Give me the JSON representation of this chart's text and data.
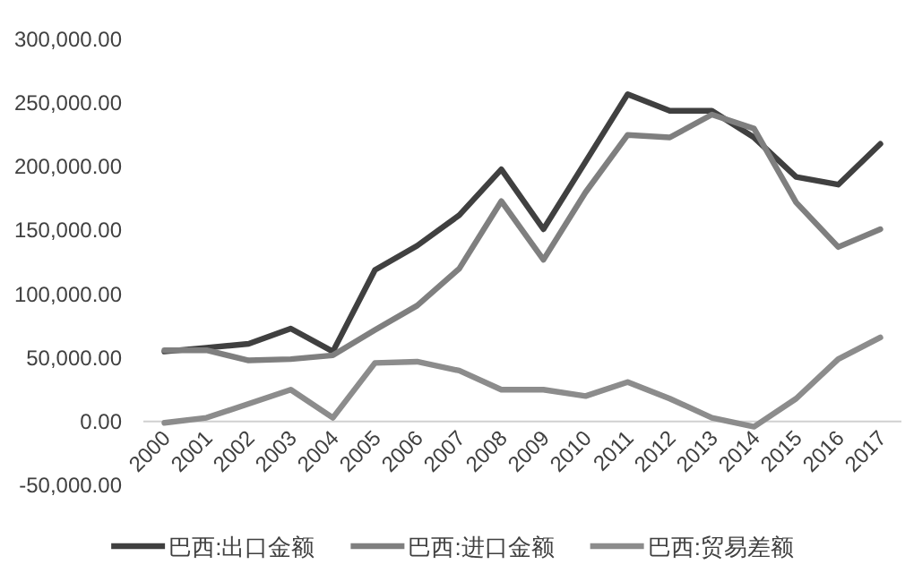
{
  "chart_data": {
    "type": "line",
    "categories": [
      "2000",
      "2001",
      "2002",
      "2003",
      "2004",
      "2005",
      "2006",
      "2007",
      "2008",
      "2009",
      "2010",
      "2011",
      "2012",
      "2013",
      "2014",
      "2015",
      "2016",
      "2017"
    ],
    "series": [
      {
        "name": "巴西:出口金额",
        "color": "#404040",
        "values": [
          55000,
          58000,
          61000,
          73000,
          55000,
          119000,
          138000,
          162000,
          198000,
          151000,
          204000,
          257000,
          244000,
          244000,
          223000,
          192000,
          186000,
          218000
        ]
      },
      {
        "name": "巴西:进口金额",
        "color": "#7f7f7f",
        "values": [
          56000,
          56000,
          48000,
          49000,
          52000,
          72000,
          91000,
          120000,
          173000,
          127000,
          180000,
          225000,
          223000,
          241000,
          230000,
          172000,
          137000,
          151000
        ]
      },
      {
        "name": "巴西:贸易差额",
        "color": "#8c8c8c",
        "values": [
          -1000,
          3000,
          14000,
          25000,
          3000,
          46000,
          47000,
          40000,
          25000,
          25000,
          20000,
          31000,
          18000,
          3000,
          -4000,
          18000,
          49000,
          66000
        ]
      }
    ],
    "ylim": [
      -50000,
      300000
    ],
    "yticks": [
      {
        "value": -50000,
        "label": "-50,000.00"
      },
      {
        "value": 0,
        "label": "0.00"
      },
      {
        "value": 50000,
        "label": "50,000.00"
      },
      {
        "value": 100000,
        "label": "100,000.00"
      },
      {
        "value": 150000,
        "label": "150,000.00"
      },
      {
        "value": 200000,
        "label": "200,000.00"
      },
      {
        "value": 250000,
        "label": "250,000.00"
      },
      {
        "value": 300000,
        "label": "300,000.00"
      }
    ],
    "grid": false,
    "legend": "bottom",
    "marker": "none",
    "line_style": "solid"
  }
}
